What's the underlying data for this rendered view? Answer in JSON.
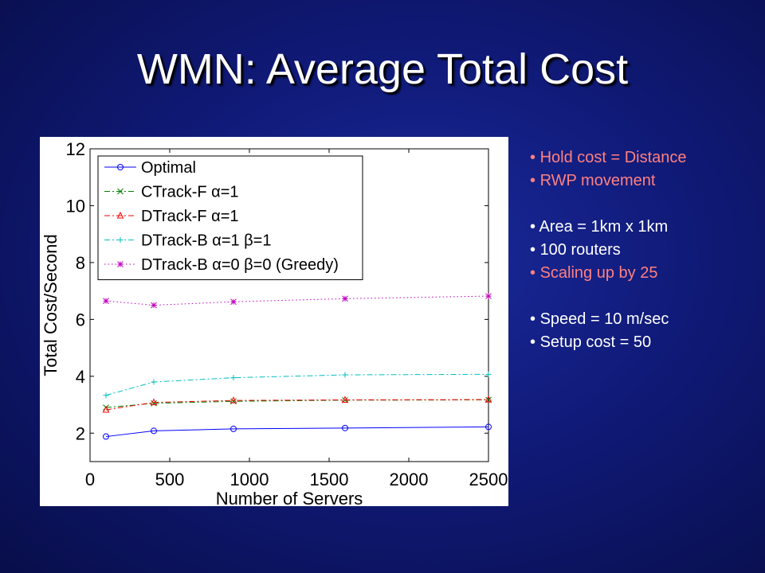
{
  "slide": {
    "title": "WMN: Average Total Cost"
  },
  "colors": {
    "highlight": "#ff8080",
    "text": "#ffffff"
  },
  "bullets": [
    {
      "text": "Hold cost = Distance",
      "color": "#ff8080",
      "gap_before": false
    },
    {
      "text": "RWP movement",
      "color": "#ff8080",
      "gap_before": false
    },
    {
      "text": "Area = 1km x 1km",
      "color": "#ffffff",
      "gap_before": true
    },
    {
      "text": "100 routers",
      "color": "#ffffff",
      "gap_before": false
    },
    {
      "text": "Scaling up by 25",
      "color": "#ff8080",
      "gap_before": false
    },
    {
      "text": "Speed = 10 m/sec",
      "color": "#ffffff",
      "gap_before": true
    },
    {
      "text": "Setup cost = 50",
      "color": "#ffffff",
      "gap_before": false
    }
  ],
  "chart_data": {
    "type": "line",
    "xlabel": "Number of Servers",
    "ylabel": "Total Cost/Second",
    "xlim": [
      0,
      2500
    ],
    "ylim": [
      1,
      12
    ],
    "xticks": [
      0,
      500,
      1000,
      1500,
      2000,
      2500
    ],
    "yticks": [
      2,
      4,
      6,
      8,
      10,
      12
    ],
    "grid": false,
    "legend": "top-left",
    "x": [
      100,
      400,
      900,
      1600,
      2500
    ],
    "series": [
      {
        "name": "Optimal",
        "color": "#0000ff",
        "dash": "solid",
        "marker": "circle",
        "values": [
          1.88,
          2.08,
          2.15,
          2.18,
          2.22
        ]
      },
      {
        "name": "CTrack-F α=1",
        "color": "#008000",
        "dash": "dashdot",
        "marker": "x",
        "values": [
          2.9,
          3.05,
          3.12,
          3.16,
          3.17
        ]
      },
      {
        "name": "DTrack-F α=1",
        "color": "#ff0000",
        "dash": "dashdot",
        "marker": "triangle",
        "values": [
          2.82,
          3.08,
          3.15,
          3.17,
          3.18
        ]
      },
      {
        "name": "DTrack-B α=1 β=1",
        "color": "#00bfbf",
        "dash": "dashdot",
        "marker": "plus",
        "values": [
          3.33,
          3.8,
          3.95,
          4.05,
          4.07
        ]
      },
      {
        "name": "DTrack-B α=0 β=0 (Greedy)",
        "color": "#bf00bf",
        "dash": "dotted",
        "marker": "star",
        "values": [
          6.65,
          6.5,
          6.62,
          6.73,
          6.82
        ]
      }
    ]
  }
}
